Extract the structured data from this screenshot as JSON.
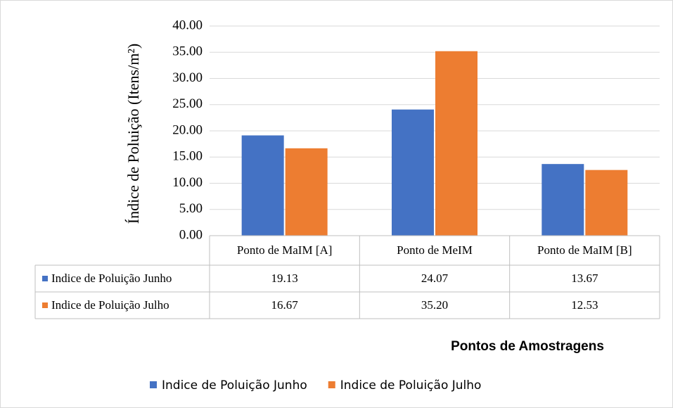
{
  "chart_data": {
    "type": "bar",
    "y_label": "Índice de Poluição (Itens/m²)",
    "x_label": "Pontos de Amostragens",
    "categories": [
      "Ponto de MaIM [A]",
      "Ponto de MeIM",
      "Ponto de MaIM [B]"
    ],
    "series": [
      {
        "name": "Indice de Poluição Junho",
        "color": "#4472c4",
        "values": [
          19.13,
          24.07,
          13.67
        ],
        "value_labels": [
          "19.13",
          "24.07",
          "13.67"
        ]
      },
      {
        "name": "Indice de Poluição Julho",
        "color": "#ed7d31",
        "values": [
          16.67,
          35.2,
          12.53
        ],
        "value_labels": [
          "16.67",
          "35.20",
          "12.53"
        ]
      }
    ],
    "ylim": [
      0,
      40
    ],
    "yticks": [
      {
        "value": 0,
        "label": "0.00"
      },
      {
        "value": 5,
        "label": "5.00"
      },
      {
        "value": 10,
        "label": "10.00"
      },
      {
        "value": 15,
        "label": "15.00"
      },
      {
        "value": 20,
        "label": "20.00"
      },
      {
        "value": 25,
        "label": "25.00"
      },
      {
        "value": 30,
        "label": "30.00"
      },
      {
        "value": 35,
        "label": "35.00"
      },
      {
        "value": 40,
        "label": "40.00"
      }
    ],
    "grid": true,
    "legend": "bottom",
    "data_table": true
  }
}
